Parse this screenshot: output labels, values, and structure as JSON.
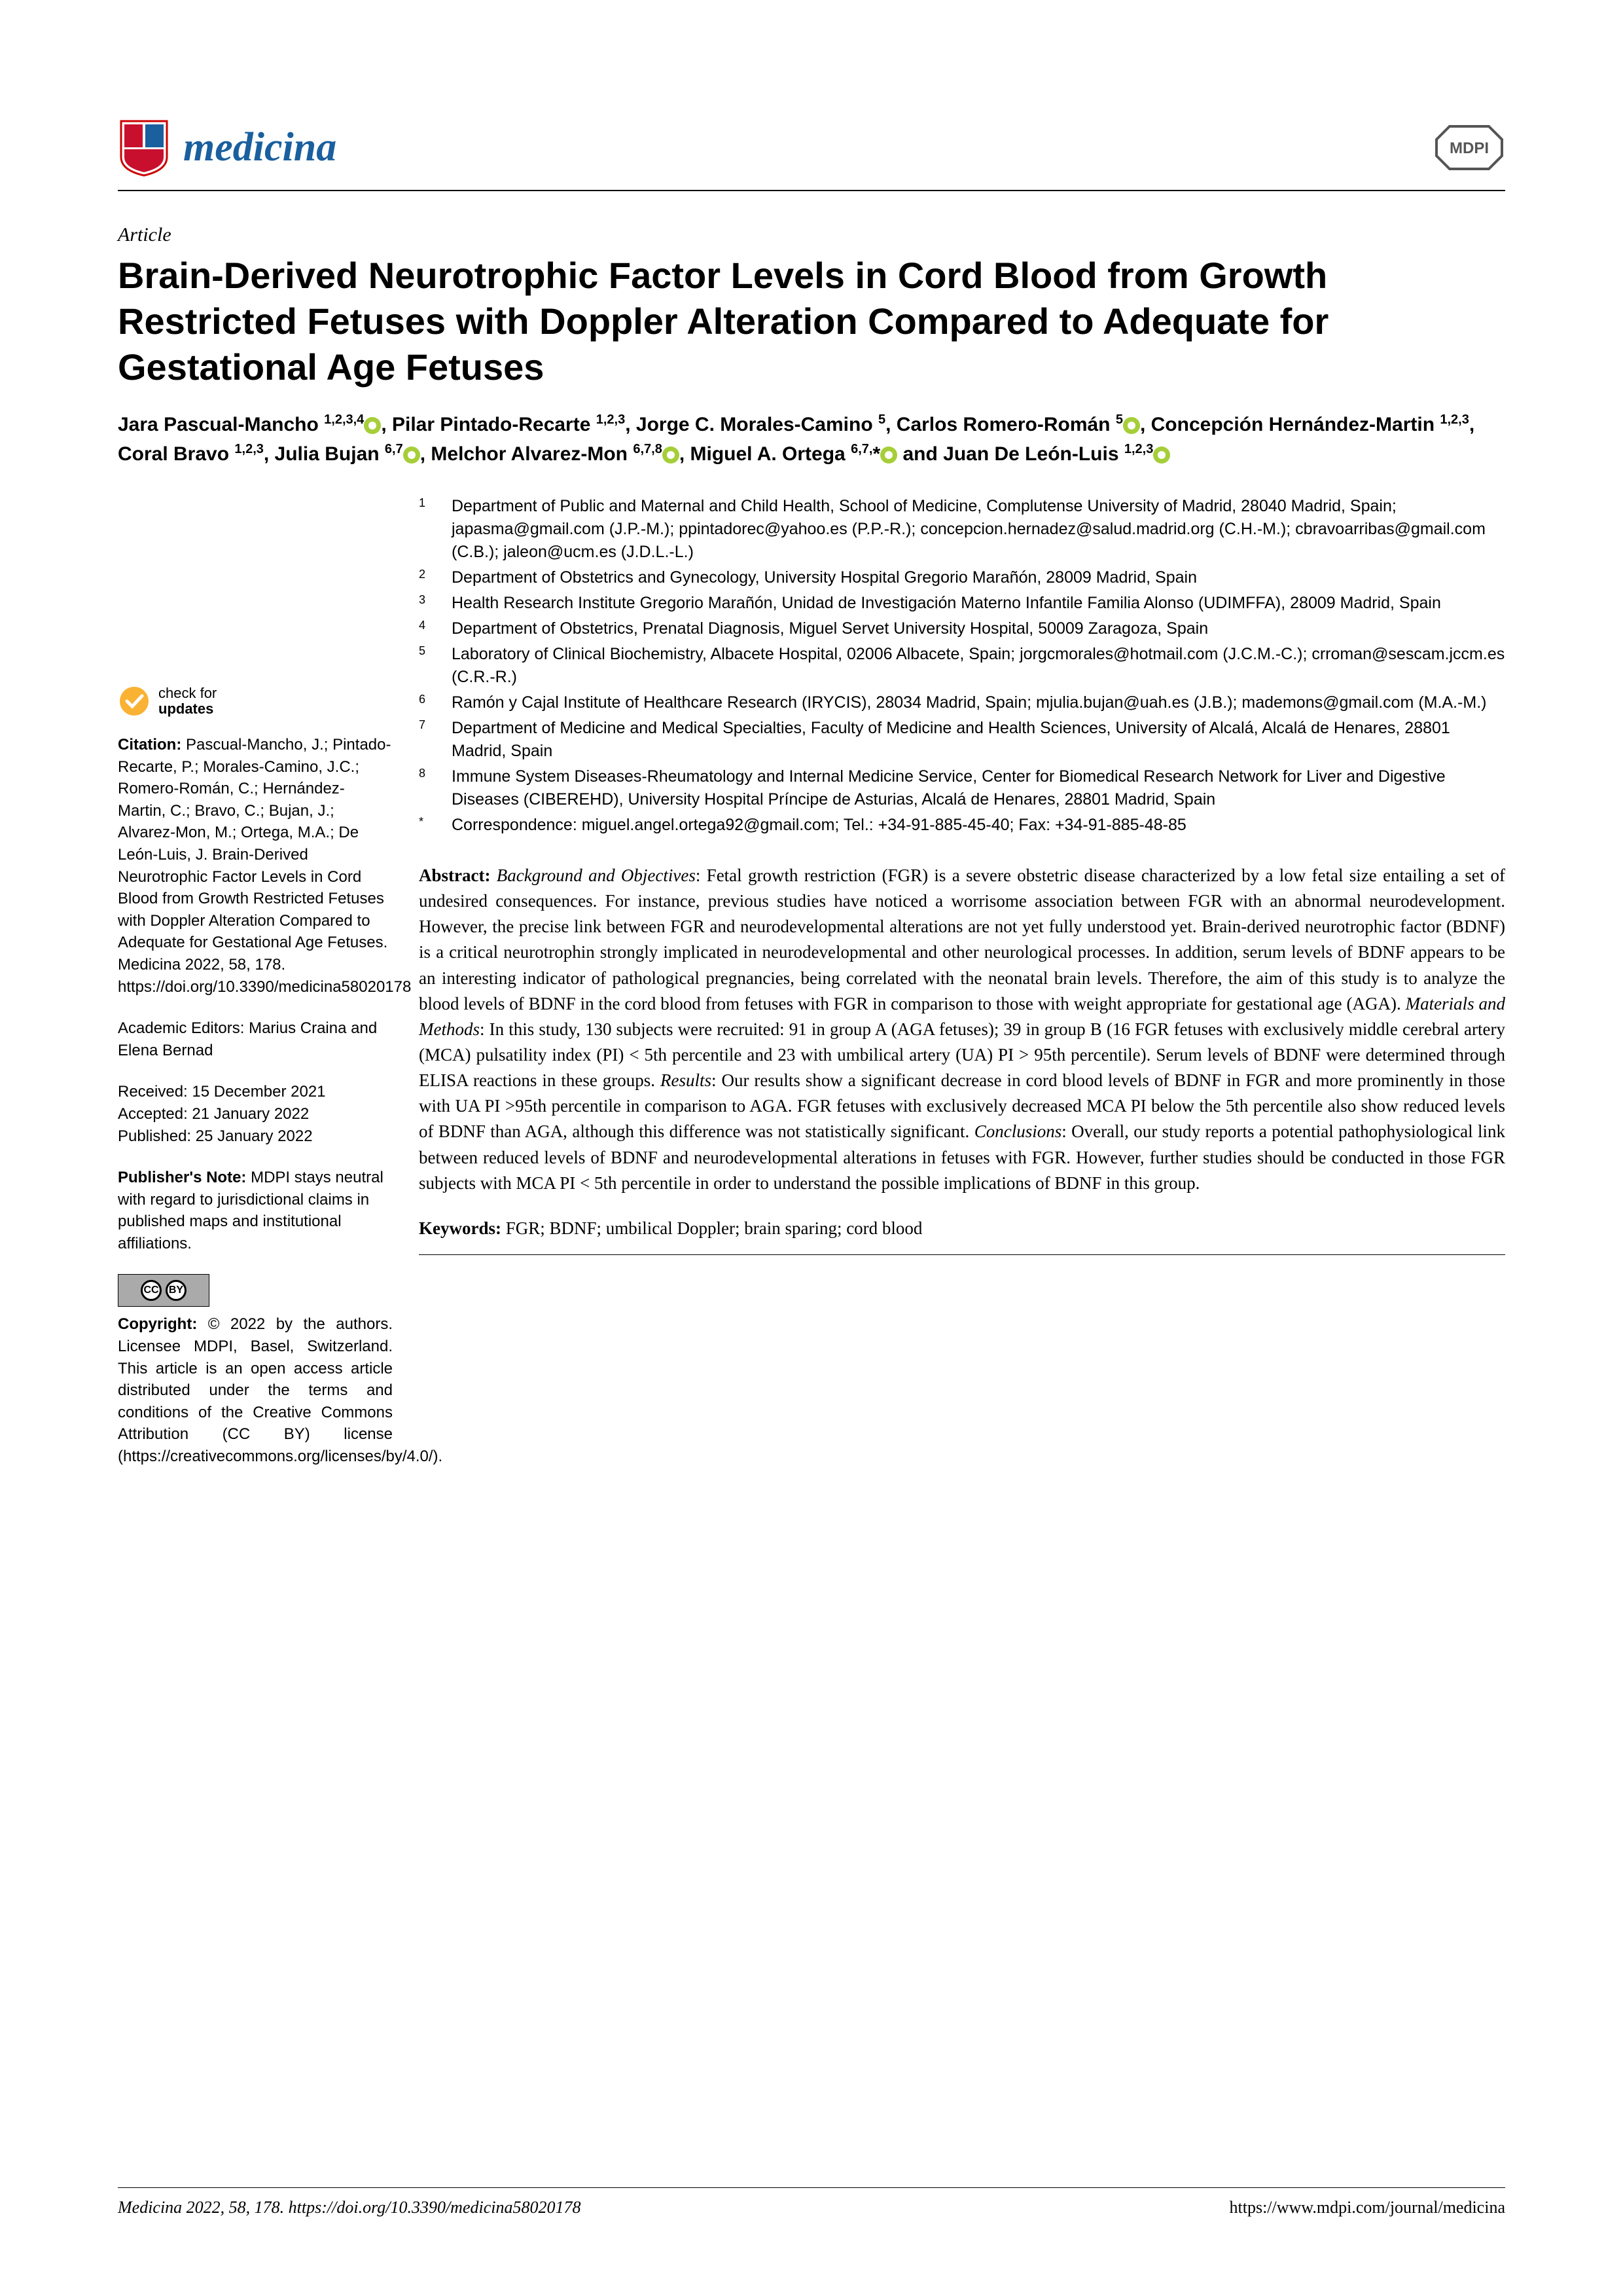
{
  "journal": {
    "name": "medicina",
    "name_color": "#1a5f9e",
    "publisher_logo": "MDPI"
  },
  "article_type": "Article",
  "title": "Brain-Derived Neurotrophic Factor Levels in Cord Blood from Growth Restricted Fetuses with Doppler Alteration Compared to Adequate for Gestational Age Fetuses",
  "authors_html": "Jara Pascual-Mancho <sup>1,2,3,4</sup><span class='orcid'></span>, Pilar Pintado-Recarte <sup>1,2,3</sup>, Jorge C. Morales-Camino <sup>5</sup>, Carlos Romero-Román <sup>5</sup><span class='orcid'></span>, Concepción Hernández-Martin <sup>1,2,3</sup>, Coral Bravo <sup>1,2,3</sup>, Julia Bujan <sup>6,7</sup><span class='orcid'></span>, Melchor Alvarez-Mon <sup>6,7,8</sup><span class='orcid'></span>, Miguel A. Ortega <sup>6,7,</sup>*<span class='orcid'></span> and Juan De León-Luis <sup>1,2,3</sup><span class='orcid'></span>",
  "affiliations": [
    {
      "n": "1",
      "text": "Department of Public and Maternal and Child Health, School of Medicine, Complutense University of Madrid, 28040 Madrid, Spain; japasma@gmail.com (J.P.-M.); ppintadorec@yahoo.es (P.P.-R.); concepcion.hernadez@salud.madrid.org (C.H.-M.); cbravoarribas@gmail.com (C.B.); jaleon@ucm.es (J.D.L.-L.)"
    },
    {
      "n": "2",
      "text": "Department of Obstetrics and Gynecology, University Hospital Gregorio Marañón, 28009 Madrid, Spain"
    },
    {
      "n": "3",
      "text": "Health Research Institute Gregorio Marañón, Unidad de Investigación Materno Infantile Familia Alonso (UDIMFFA), 28009 Madrid, Spain"
    },
    {
      "n": "4",
      "text": "Department of Obstetrics, Prenatal Diagnosis, Miguel Servet University Hospital, 50009 Zaragoza, Spain"
    },
    {
      "n": "5",
      "text": "Laboratory of Clinical Biochemistry, Albacete Hospital, 02006 Albacete, Spain; jorgcmorales@hotmail.com (J.C.M.-C.); crroman@sescam.jccm.es (C.R.-R.)"
    },
    {
      "n": "6",
      "text": "Ramón y Cajal Institute of Healthcare Research (IRYCIS), 28034 Madrid, Spain; mjulia.bujan@uah.es (J.B.); mademons@gmail.com (M.A.-M.)"
    },
    {
      "n": "7",
      "text": "Department of Medicine and Medical Specialties, Faculty of Medicine and Health Sciences, University of Alcalá, Alcalá de Henares, 28801 Madrid, Spain"
    },
    {
      "n": "8",
      "text": "Immune System Diseases-Rheumatology and Internal Medicine Service, Center for Biomedical Research Network for Liver and Digestive Diseases (CIBEREHD), University Hospital Príncipe de Asturias, Alcalá de Henares, 28801 Madrid, Spain"
    },
    {
      "n": "*",
      "text": "Correspondence: miguel.angel.ortega92@gmail.com; Tel.: +34-91-885-45-40; Fax: +34-91-885-48-85"
    }
  ],
  "sidebar": {
    "check_label_1": "check for",
    "check_label_2": "updates",
    "citation_label": "Citation:",
    "citation": "Pascual-Mancho, J.; Pintado-Recarte, P.; Morales-Camino, J.C.; Romero-Román, C.; Hernández-Martin, C.; Bravo, C.; Bujan, J.; Alvarez-Mon, M.; Ortega, M.A.; De León-Luis, J. Brain-Derived Neurotrophic Factor Levels in Cord Blood from Growth Restricted Fetuses with Doppler Alteration Compared to Adequate for Gestational Age Fetuses. Medicina 2022, 58, 178. https://doi.org/10.3390/medicina58020178",
    "editors_label": "Academic Editors:",
    "editors": "Marius Craina and Elena Bernad",
    "received": "Received: 15 December 2021",
    "accepted": "Accepted: 21 January 2022",
    "published": "Published: 25 January 2022",
    "pubnote_label": "Publisher's Note:",
    "pubnote": "MDPI stays neutral with regard to jurisdictional claims in published maps and institutional affiliations.",
    "copyright_label": "Copyright:",
    "copyright": "© 2022 by the authors. Licensee MDPI, Basel, Switzerland. This article is an open access article distributed under the terms and conditions of the Creative Commons Attribution (CC BY) license (https://creativecommons.org/licenses/by/4.0/)."
  },
  "abstract": {
    "label": "Abstract:",
    "sections": {
      "bg_label": "Background and Objectives",
      "bg": ": Fetal growth restriction (FGR) is a severe obstetric disease characterized by a low fetal size entailing a set of undesired consequences. For instance, previous studies have noticed a worrisome association between FGR with an abnormal neurodevelopment. However, the precise link between FGR and neurodevelopmental alterations are not yet fully understood yet. Brain-derived neurotrophic factor (BDNF) is a critical neurotrophin strongly implicated in neurodevelopmental and other neurological processes. In addition, serum levels of BDNF appears to be an interesting indicator of pathological pregnancies, being correlated with the neonatal brain levels. Therefore, the aim of this study is to analyze the blood levels of BDNF in the cord blood from fetuses with FGR in comparison to those with weight appropriate for gestational age (AGA). ",
      "mm_label": "Materials and Methods",
      "mm": ": In this study, 130 subjects were recruited: 91 in group A (AGA fetuses); 39 in group B (16 FGR fetuses with exclusively middle cerebral artery (MCA) pulsatility index (PI) < 5th percentile and 23 with umbilical artery (UA) PI > 95th percentile). Serum levels of BDNF were determined through ELISA reactions in these groups. ",
      "res_label": "Results",
      "res": ": Our results show a significant decrease in cord blood levels of BDNF in FGR and more prominently in those with UA PI >95th percentile in comparison to AGA. FGR fetuses with exclusively decreased MCA PI below the 5th percentile also show reduced levels of BDNF than AGA, although this difference was not statistically significant. ",
      "con_label": "Conclusions",
      "con": ": Overall, our study reports a potential pathophysiological link between reduced levels of BDNF and neurodevelopmental alterations in fetuses with FGR. However, further studies should be conducted in those FGR subjects with MCA PI < 5th percentile in order to understand the possible implications of BDNF in this group."
    }
  },
  "keywords": {
    "label": "Keywords:",
    "text": "FGR; BDNF; umbilical Doppler; brain sparing; cord blood"
  },
  "footer": {
    "left": "Medicina 2022, 58, 178. https://doi.org/10.3390/medicina58020178",
    "right": "https://www.mdpi.com/journal/medicina"
  },
  "colors": {
    "text": "#000000",
    "background": "#ffffff",
    "brand": "#1a5f9e",
    "orcid": "#a6ce39",
    "check_yellow": "#f9b233"
  }
}
